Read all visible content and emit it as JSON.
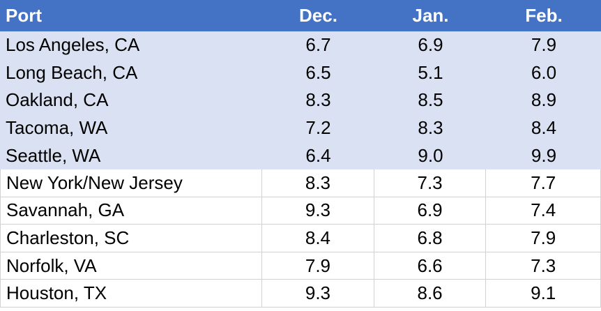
{
  "chart_data": {
    "type": "table",
    "columns": [
      "Port",
      "Dec.",
      "Jan.",
      "Feb."
    ],
    "rows": [
      {
        "port": "Los Angeles, CA",
        "values": [
          "6.7",
          "6.9",
          "7.9"
        ],
        "group": "west"
      },
      {
        "port": "Long Beach, CA",
        "values": [
          "6.5",
          "5.1",
          "6.0"
        ],
        "group": "west"
      },
      {
        "port": "Oakland, CA",
        "values": [
          "8.3",
          "8.5",
          "8.9"
        ],
        "group": "west"
      },
      {
        "port": "Tacoma, WA",
        "values": [
          "7.2",
          "8.3",
          "8.4"
        ],
        "group": "west"
      },
      {
        "port": "Seattle, WA",
        "values": [
          "6.4",
          "9.0",
          "9.9"
        ],
        "group": "west"
      },
      {
        "port": "New York/New Jersey",
        "values": [
          "8.3",
          "7.3",
          "7.7"
        ],
        "group": "east"
      },
      {
        "port": "Savannah, GA",
        "values": [
          "9.3",
          "6.9",
          "7.4"
        ],
        "group": "east"
      },
      {
        "port": "Charleston, SC",
        "values": [
          "8.4",
          "6.8",
          "7.9"
        ],
        "group": "east"
      },
      {
        "port": "Norfolk, VA",
        "values": [
          "7.9",
          "6.6",
          "7.3"
        ],
        "group": "east"
      },
      {
        "port": "Houston, TX",
        "values": [
          "9.3",
          "8.6",
          "9.1"
        ],
        "group": "east"
      }
    ]
  },
  "colors": {
    "header_bg": "#4472C4",
    "header_text": "#ffffff",
    "west_row_bg": "#D9E1F2",
    "east_row_bg": "#ffffff"
  }
}
